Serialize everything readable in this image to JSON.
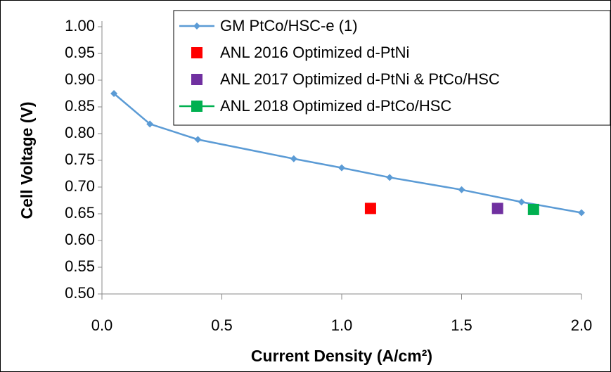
{
  "chart_data": {
    "type": "line",
    "xlabel": "Current Density (A/cm²)",
    "ylabel": "Cell Voltage (V)",
    "xlim": [
      0,
      2
    ],
    "ylim": [
      0.5,
      1.0
    ],
    "xticks": [
      {
        "value": 0,
        "label": "0.0"
      },
      0.5,
      {
        "value": 1,
        "label": "1.0"
      },
      1.5,
      {
        "value": 2,
        "label": "2.0"
      }
    ],
    "yticks": [
      {
        "value": 0.5,
        "label": "0.50"
      },
      0.55,
      {
        "value": 0.6,
        "label": "0.60"
      },
      0.65,
      {
        "value": 0.7,
        "label": "0.70"
      },
      0.75,
      {
        "value": 0.8,
        "label": "0.80"
      },
      0.85,
      {
        "value": 0.9,
        "label": "0.90"
      },
      0.95,
      {
        "value": 1.0,
        "label": "1.00"
      }
    ],
    "grid": false,
    "legend": "top-right",
    "series": [
      {
        "name": "GM PtCo/HSC-e (1)",
        "color": "#5b9bd5",
        "marker": "diamond",
        "line": true,
        "x": [
          0.05,
          0.2,
          0.4,
          0.8,
          1.0,
          1.2,
          1.5,
          1.75,
          2.0
        ],
        "values": [
          0.875,
          0.818,
          0.789,
          0.753,
          0.736,
          0.718,
          0.695,
          0.672,
          0.652
        ]
      },
      {
        "name": "ANL 2016 Optimized d-PtNi",
        "color": "#ff0000",
        "marker": "square",
        "line": false,
        "x": [
          1.12
        ],
        "values": [
          0.66
        ]
      },
      {
        "name": "ANL 2017 Optimized d-PtNi & PtCo/HSC",
        "color": "#7030a0",
        "marker": "square",
        "line": false,
        "x": [
          1.65
        ],
        "values": [
          0.66
        ]
      },
      {
        "name": "ANL 2018 Optimized d-PtCo/HSC",
        "color": "#00b050",
        "marker": "square",
        "line": true,
        "x": [
          1.8
        ],
        "values": [
          0.658
        ]
      }
    ]
  }
}
